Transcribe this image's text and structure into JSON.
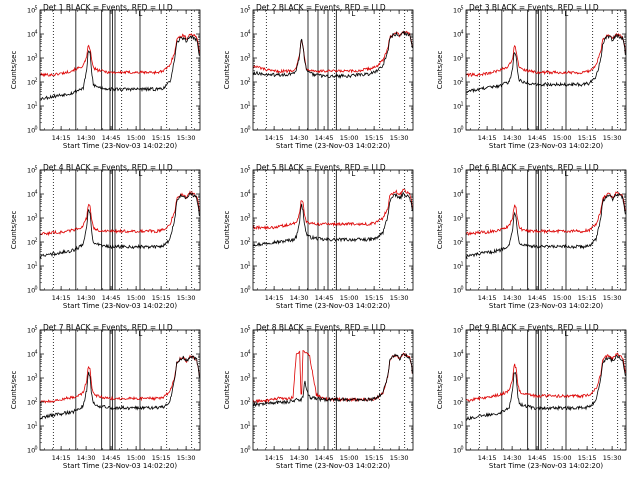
{
  "chart_data": {
    "type": "line",
    "layout": "3x3 grid of log-scale lightcurve panels",
    "colors": {
      "events": "#000000",
      "lld": "#dd0000",
      "axes": "#000000"
    },
    "common": {
      "xlabel": "Start Time (23-Nov-03 14:02:20)",
      "ylabel": "Counts/sec",
      "x_range_min": [
        0,
        96
      ],
      "x_ticks": [
        {
          "value": 12.67,
          "label": "14:15"
        },
        {
          "value": 27.67,
          "label": "14:30"
        },
        {
          "value": 42.67,
          "label": "14:45"
        },
        {
          "value": 57.67,
          "label": "15:00"
        },
        {
          "value": 72.67,
          "label": "15:15"
        },
        {
          "value": 87.67,
          "label": "15:30"
        }
      ],
      "y_log_range": [
        0,
        5
      ],
      "y_tick_base": "10",
      "y_tick_exponents": [
        "0",
        "1",
        "2",
        "3",
        "4",
        "5"
      ],
      "legend_marker": "L",
      "series_names": [
        "Events (BLACK)",
        "LLD (RED)"
      ],
      "sample_x_min": [
        0,
        4,
        8,
        12,
        16,
        20,
        24,
        26,
        28,
        29,
        30,
        31,
        32,
        34,
        38,
        42,
        46,
        50,
        54,
        58,
        62,
        66,
        70,
        74,
        78,
        81,
        82,
        84,
        86,
        88,
        90,
        92,
        94,
        95,
        96
      ]
    },
    "panels": [
      {
        "title": "Det 1 BLACK = Events, RED = LLD",
        "solid_lines": [
          21.5,
          37,
          42,
          43.5,
          45,
          60
        ],
        "dotted_lines": [
          8,
          49,
          76,
          91
        ],
        "events_log": [
          1.3,
          1.35,
          1.4,
          1.45,
          1.5,
          1.55,
          1.7,
          1.75,
          2.5,
          3.3,
          3.2,
          2.4,
          1.9,
          1.8,
          1.75,
          1.7,
          1.7,
          1.7,
          1.7,
          1.7,
          1.7,
          1.7,
          1.7,
          1.75,
          2.0,
          3.0,
          3.6,
          3.8,
          3.85,
          3.7,
          3.9,
          3.85,
          3.75,
          3.4,
          2.8
        ],
        "lld_log": [
          2.3,
          2.3,
          2.3,
          2.35,
          2.4,
          2.5,
          2.6,
          2.7,
          3.0,
          3.55,
          3.4,
          2.9,
          2.6,
          2.5,
          2.45,
          2.4,
          2.4,
          2.4,
          2.4,
          2.4,
          2.4,
          2.4,
          2.4,
          2.45,
          2.7,
          3.3,
          3.75,
          3.9,
          3.95,
          3.8,
          4.0,
          3.95,
          3.85,
          3.6,
          3.0
        ]
      },
      {
        "title": "Det 2 BLACK = Events, RED = LLD",
        "solid_lines": [
          33,
          39,
          45,
          50
        ],
        "dotted_lines": [
          8,
          49,
          76,
          91
        ],
        "events_log": [
          2.4,
          2.35,
          2.3,
          2.3,
          2.3,
          2.3,
          2.35,
          2.5,
          3.1,
          3.8,
          3.5,
          2.9,
          2.5,
          2.35,
          2.3,
          2.25,
          2.25,
          2.25,
          2.25,
          2.25,
          2.3,
          2.3,
          2.35,
          2.45,
          2.7,
          3.3,
          3.8,
          3.95,
          4.0,
          3.9,
          4.05,
          4.0,
          3.95,
          3.7,
          3.2
        ],
        "lld_log": [
          2.65,
          2.6,
          2.5,
          2.45,
          2.45,
          2.45,
          2.5,
          2.6,
          3.15,
          3.85,
          3.55,
          2.95,
          2.6,
          2.5,
          2.45,
          2.45,
          2.45,
          2.45,
          2.45,
          2.45,
          2.45,
          2.5,
          2.55,
          2.65,
          2.9,
          3.4,
          3.85,
          4.0,
          4.05,
          3.95,
          4.1,
          4.05,
          4.0,
          3.75,
          3.25
        ]
      },
      {
        "title": "Det 3 BLACK = Events, RED = LLD",
        "solid_lines": [
          21.5,
          37,
          42,
          43.5,
          45,
          60
        ],
        "dotted_lines": [
          8,
          49,
          76,
          91
        ],
        "events_log": [
          1.6,
          1.65,
          1.7,
          1.75,
          1.8,
          1.85,
          1.95,
          2.0,
          2.6,
          3.3,
          3.1,
          2.4,
          2.1,
          2.0,
          1.95,
          1.9,
          1.9,
          1.9,
          1.9,
          1.9,
          1.9,
          1.9,
          1.9,
          1.95,
          2.2,
          3.0,
          3.6,
          3.85,
          3.9,
          3.75,
          3.95,
          3.9,
          3.8,
          3.5,
          2.9
        ],
        "lld_log": [
          2.3,
          2.3,
          2.3,
          2.35,
          2.4,
          2.5,
          2.6,
          2.7,
          3.0,
          3.5,
          3.35,
          2.9,
          2.6,
          2.5,
          2.45,
          2.4,
          2.4,
          2.4,
          2.4,
          2.4,
          2.4,
          2.4,
          2.4,
          2.45,
          2.7,
          3.3,
          3.75,
          3.9,
          3.95,
          3.8,
          4.0,
          3.95,
          3.85,
          3.6,
          3.0
        ]
      },
      {
        "title": "Det 4 BLACK = Events, RED = LLD",
        "solid_lines": [
          21.5,
          37,
          42,
          43.5,
          45,
          60
        ],
        "dotted_lines": [
          8,
          49,
          76,
          91
        ],
        "events_log": [
          1.4,
          1.45,
          1.5,
          1.55,
          1.6,
          1.65,
          1.8,
          1.9,
          2.6,
          3.4,
          3.2,
          2.4,
          2.0,
          1.9,
          1.85,
          1.8,
          1.8,
          1.8,
          1.8,
          1.8,
          1.8,
          1.8,
          1.8,
          1.85,
          2.1,
          3.0,
          3.7,
          3.9,
          3.95,
          3.8,
          4.0,
          3.95,
          3.85,
          3.5,
          2.9
        ],
        "lld_log": [
          2.35,
          2.35,
          2.4,
          2.4,
          2.45,
          2.5,
          2.6,
          2.7,
          3.0,
          3.6,
          3.45,
          2.9,
          2.6,
          2.5,
          2.45,
          2.45,
          2.45,
          2.45,
          2.45,
          2.45,
          2.45,
          2.45,
          2.45,
          2.5,
          2.75,
          3.3,
          3.8,
          3.95,
          4.0,
          3.85,
          4.05,
          4.0,
          3.9,
          3.6,
          3.0
        ]
      },
      {
        "title": "Det 5 BLACK = Events, RED = LLD",
        "solid_lines": [
          33,
          39,
          45,
          50
        ],
        "dotted_lines": [
          8,
          49,
          76,
          91
        ],
        "events_log": [
          1.9,
          1.9,
          1.95,
          2.0,
          2.0,
          2.05,
          2.1,
          2.2,
          2.9,
          3.6,
          3.3,
          2.7,
          2.35,
          2.2,
          2.15,
          2.1,
          2.1,
          2.1,
          2.1,
          2.1,
          2.1,
          2.1,
          2.1,
          2.15,
          2.4,
          3.1,
          3.7,
          3.9,
          3.95,
          3.8,
          4.0,
          3.95,
          3.85,
          3.6,
          3.0
        ],
        "lld_log": [
          2.6,
          2.6,
          2.6,
          2.6,
          2.65,
          2.7,
          2.75,
          2.85,
          3.2,
          3.8,
          3.6,
          3.05,
          2.85,
          2.8,
          2.75,
          2.75,
          2.75,
          2.75,
          2.75,
          2.75,
          2.75,
          2.75,
          2.75,
          2.8,
          3.0,
          3.45,
          3.9,
          4.05,
          4.1,
          3.95,
          4.15,
          4.1,
          4.0,
          3.75,
          3.2
        ]
      },
      {
        "title": "Det 6 BLACK = Events, RED = LLD",
        "solid_lines": [
          21.5,
          37,
          42,
          43.5,
          45,
          60
        ],
        "dotted_lines": [
          8,
          49,
          76,
          91
        ],
        "events_log": [
          1.4,
          1.45,
          1.5,
          1.55,
          1.6,
          1.65,
          1.8,
          1.9,
          2.5,
          3.3,
          3.1,
          2.3,
          2.0,
          1.9,
          1.85,
          1.8,
          1.8,
          1.8,
          1.8,
          1.8,
          1.8,
          1.8,
          1.8,
          1.85,
          2.1,
          3.0,
          3.7,
          3.9,
          3.95,
          3.8,
          4.0,
          3.95,
          3.85,
          3.5,
          2.9
        ],
        "lld_log": [
          2.35,
          2.35,
          2.4,
          2.4,
          2.45,
          2.5,
          2.6,
          2.7,
          3.0,
          3.55,
          3.4,
          2.9,
          2.6,
          2.5,
          2.45,
          2.45,
          2.45,
          2.45,
          2.45,
          2.45,
          2.45,
          2.45,
          2.45,
          2.5,
          2.75,
          3.3,
          3.8,
          3.95,
          4.0,
          3.85,
          4.05,
          4.0,
          3.9,
          3.6,
          3.0
        ]
      },
      {
        "title": "Det 7 BLACK = Events, RED = LLD",
        "solid_lines": [
          21.5,
          37,
          42,
          43.5,
          45,
          60
        ],
        "dotted_lines": [
          8,
          49,
          76,
          91
        ],
        "events_log": [
          1.35,
          1.4,
          1.45,
          1.5,
          1.55,
          1.6,
          1.75,
          1.85,
          2.5,
          3.3,
          3.1,
          2.3,
          1.95,
          1.85,
          1.8,
          1.75,
          1.75,
          1.75,
          1.75,
          1.75,
          1.75,
          1.75,
          1.75,
          1.8,
          2.05,
          3.0,
          3.6,
          3.8,
          3.85,
          3.7,
          3.9,
          3.85,
          3.75,
          3.4,
          2.8
        ],
        "lld_log": [
          2.0,
          2.0,
          2.05,
          2.1,
          2.15,
          2.2,
          2.3,
          2.4,
          2.9,
          3.5,
          3.35,
          2.7,
          2.35,
          2.25,
          2.2,
          2.15,
          2.15,
          2.15,
          2.15,
          2.15,
          2.15,
          2.15,
          2.15,
          2.2,
          2.45,
          3.1,
          3.6,
          3.8,
          3.85,
          3.7,
          3.9,
          3.85,
          3.75,
          3.45,
          2.85
        ]
      },
      {
        "title": "Det 8 BLACK = Events, RED = LLD",
        "solid_lines": [
          33,
          39,
          45,
          50
        ],
        "dotted_lines": [
          8,
          49,
          76,
          91
        ],
        "events_log": [
          1.9,
          1.9,
          1.95,
          1.95,
          2.0,
          2.0,
          2.05,
          2.1,
          2.05,
          2.1,
          2.2,
          2.9,
          2.5,
          2.2,
          2.15,
          2.1,
          2.1,
          2.1,
          2.1,
          2.1,
          2.1,
          2.1,
          2.1,
          2.15,
          2.4,
          3.1,
          3.7,
          3.9,
          3.95,
          3.8,
          4.0,
          3.95,
          3.85,
          3.6,
          3.0
        ],
        "lld_log": [
          2.0,
          2.05,
          2.05,
          2.1,
          2.2,
          2.1,
          2.2,
          4.05,
          4.05,
          1.95,
          4.1,
          4.1,
          4.1,
          3.9,
          2.3,
          2.15,
          2.1,
          2.1,
          2.1,
          2.1,
          2.1,
          2.1,
          2.1,
          2.15,
          2.4,
          3.1,
          3.7,
          3.9,
          3.95,
          3.8,
          4.0,
          3.95,
          3.85,
          3.6,
          3.0
        ]
      },
      {
        "title": "Det 9 BLACK = Events, RED = LLD",
        "solid_lines": [
          21.5,
          37,
          42,
          43.5,
          45,
          60
        ],
        "dotted_lines": [
          8,
          49,
          76,
          91
        ],
        "events_log": [
          1.3,
          1.35,
          1.4,
          1.45,
          1.5,
          1.55,
          1.7,
          1.8,
          2.5,
          3.3,
          3.1,
          2.3,
          1.95,
          1.85,
          1.8,
          1.75,
          1.75,
          1.75,
          1.75,
          1.75,
          1.75,
          1.75,
          1.75,
          1.8,
          2.05,
          3.0,
          3.6,
          3.8,
          3.85,
          3.7,
          3.9,
          3.85,
          3.75,
          3.4,
          2.8
        ],
        "lld_log": [
          2.1,
          2.1,
          2.15,
          2.2,
          2.25,
          2.3,
          2.4,
          2.5,
          2.95,
          3.6,
          3.4,
          2.8,
          2.45,
          2.35,
          2.3,
          2.25,
          2.25,
          2.25,
          2.25,
          2.25,
          2.25,
          2.25,
          2.25,
          2.3,
          2.55,
          3.2,
          3.7,
          3.9,
          3.95,
          3.8,
          4.0,
          3.95,
          3.85,
          3.55,
          2.95
        ]
      }
    ]
  }
}
